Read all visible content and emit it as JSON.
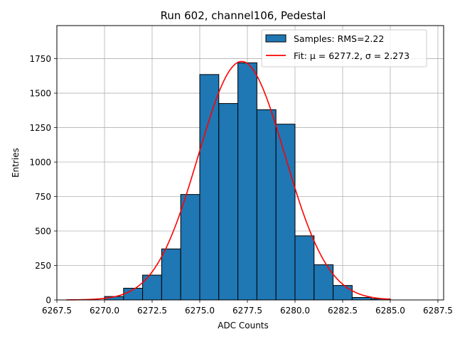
{
  "chart_data": {
    "type": "bar",
    "title": "Run 602, channel106, Pedestal",
    "xlabel": "ADC Counts",
    "ylabel": "Entries",
    "xlim": [
      6267.5,
      6287.8
    ],
    "ylim": [
      0,
      1990
    ],
    "x_ticks": [
      6267.5,
      6270.0,
      6272.5,
      6275.0,
      6277.5,
      6280.0,
      6282.5,
      6285.0,
      6287.5
    ],
    "x_tick_labels": [
      "6267.5",
      "6270.0",
      "6272.5",
      "6275.0",
      "6277.5",
      "6280.0",
      "6282.5",
      "6285.0",
      "6287.5"
    ],
    "y_ticks": [
      0,
      250,
      500,
      750,
      1000,
      1250,
      1500,
      1750
    ],
    "y_tick_labels": [
      "0",
      "250",
      "500",
      "750",
      "1000",
      "1250",
      "1500",
      "1750"
    ],
    "grid": true,
    "legend_position": "top-right",
    "bins": [
      {
        "x0": 6270,
        "x1": 6271,
        "value": 25
      },
      {
        "x0": 6271,
        "x1": 6272,
        "value": 85
      },
      {
        "x0": 6272,
        "x1": 6273,
        "value": 180
      },
      {
        "x0": 6273,
        "x1": 6274,
        "value": 370
      },
      {
        "x0": 6274,
        "x1": 6275,
        "value": 765
      },
      {
        "x0": 6275,
        "x1": 6276,
        "value": 1635
      },
      {
        "x0": 6276,
        "x1": 6277,
        "value": 1425
      },
      {
        "x0": 6277,
        "x1": 6278,
        "value": 1720
      },
      {
        "x0": 6278,
        "x1": 6279,
        "value": 1380
      },
      {
        "x0": 6279,
        "x1": 6280,
        "value": 1275
      },
      {
        "x0": 6280,
        "x1": 6281,
        "value": 465
      },
      {
        "x0": 6281,
        "x1": 6282,
        "value": 255
      },
      {
        "x0": 6282,
        "x1": 6283,
        "value": 105
      },
      {
        "x0": 6283,
        "x1": 6284,
        "value": 18
      },
      {
        "x0": 6284,
        "x1": 6285,
        "value": 8
      }
    ],
    "fit": {
      "mu": 6277.2,
      "sigma": 2.273,
      "amplitude": 1730,
      "x_from": 6268,
      "x_to": 6285
    },
    "series": [
      {
        "name": "Samples: RMS=2.22",
        "kind": "histogram",
        "color": "#1f77b4"
      },
      {
        "name": "Fit: μ = 6277.2, σ = 2.273",
        "kind": "line",
        "color": "#ff0000"
      }
    ]
  }
}
